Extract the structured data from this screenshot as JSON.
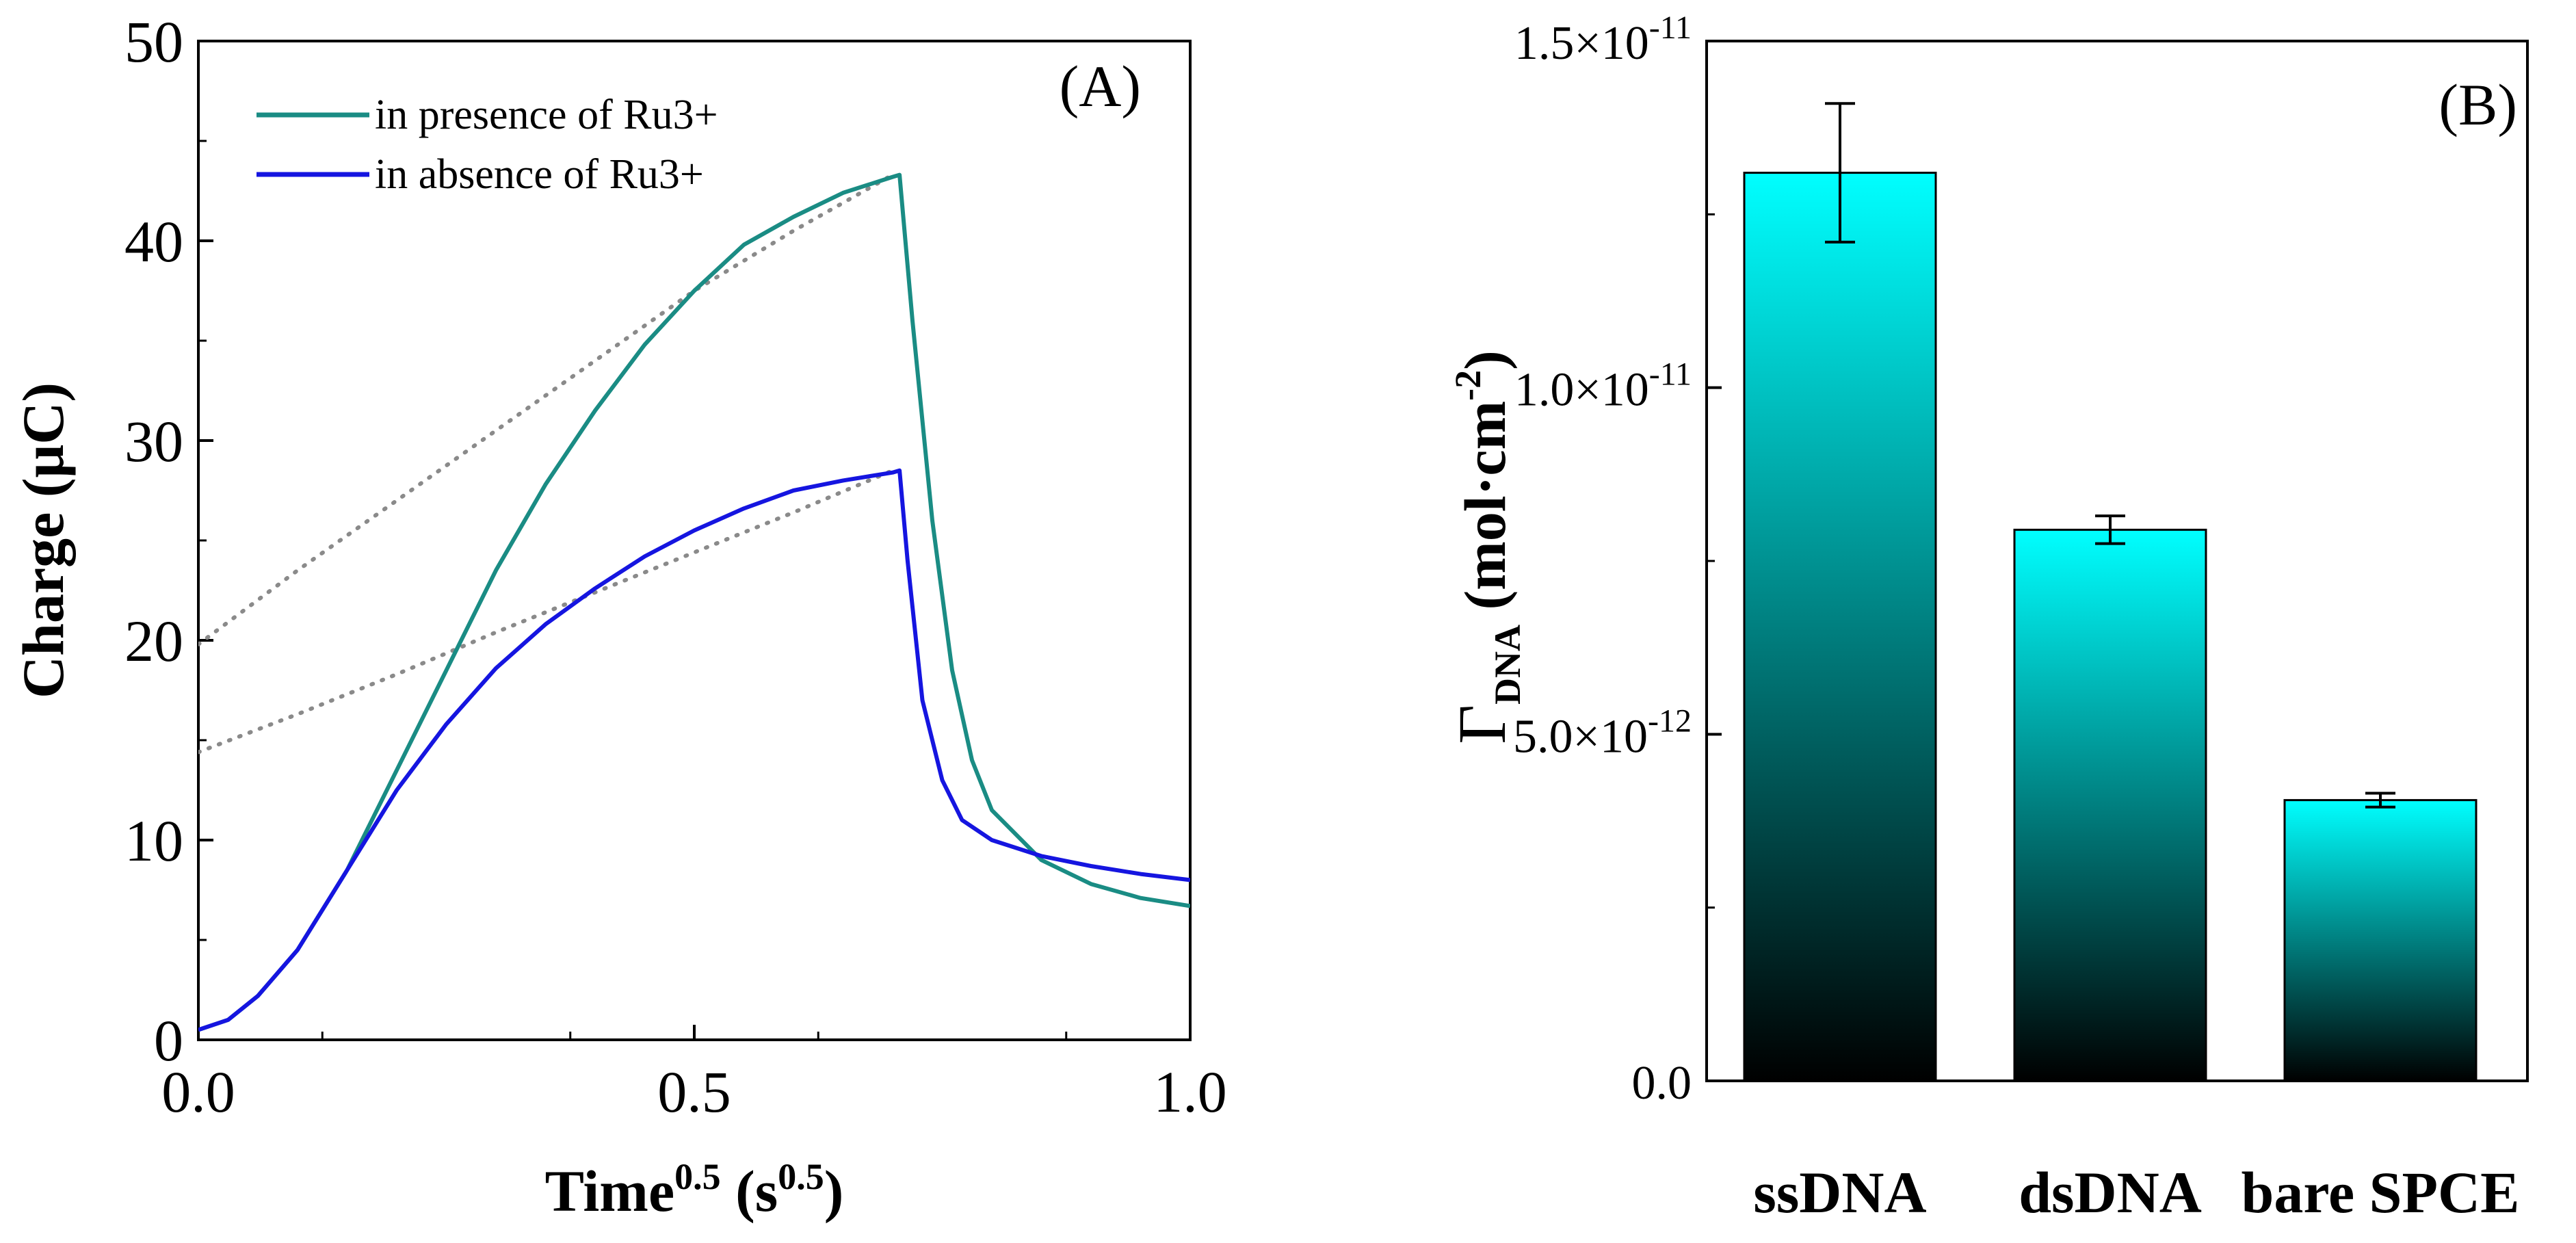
{
  "colors": {
    "teal": "#1a8c84",
    "blue": "#1515e0",
    "fit": "#8a8a8a",
    "bar_top": "#00ffff",
    "bar_bottom": "#000000"
  },
  "chart_data": [
    {
      "type": "line",
      "panel_label": "(A)",
      "xlabel_main": "Time",
      "xlabel_sup": "0.5",
      "xlabel_unit_open": " (s",
      "xlabel_unit_sup": "0.5",
      "xlabel_unit_close": ")",
      "ylabel": "Charge (μC)",
      "xlim": [
        0.0,
        1.0
      ],
      "ylim": [
        0,
        50
      ],
      "x_ticks": [
        "0.0",
        "0.5",
        "1.0"
      ],
      "x_tick_values": [
        0.0,
        0.5,
        1.0
      ],
      "y_ticks": [
        "0",
        "10",
        "20",
        "30",
        "40",
        "50"
      ],
      "y_tick_values": [
        0,
        10,
        20,
        30,
        40,
        50
      ],
      "legend_position": "top-left",
      "series": [
        {
          "name": "in presence of Ru3+",
          "color": "#1a8c84",
          "x": [
            0.0,
            0.03,
            0.06,
            0.1,
            0.15,
            0.2,
            0.25,
            0.3,
            0.35,
            0.4,
            0.45,
            0.5,
            0.55,
            0.6,
            0.65,
            0.7,
            0.707,
            0.72,
            0.74,
            0.76,
            0.78,
            0.8,
            0.85,
            0.9,
            0.95,
            1.0
          ],
          "y": [
            0.5,
            1.0,
            2.2,
            4.5,
            8.5,
            13.5,
            18.5,
            23.5,
            27.8,
            31.5,
            34.8,
            37.5,
            39.8,
            41.2,
            42.4,
            43.2,
            43.3,
            36.0,
            26.0,
            18.5,
            14.0,
            11.5,
            9.0,
            7.8,
            7.1,
            6.7
          ]
        },
        {
          "name": "in absence of Ru3+",
          "color": "#1515e0",
          "x": [
            0.0,
            0.03,
            0.06,
            0.1,
            0.15,
            0.2,
            0.25,
            0.3,
            0.35,
            0.4,
            0.45,
            0.5,
            0.55,
            0.6,
            0.65,
            0.7,
            0.707,
            0.715,
            0.73,
            0.75,
            0.77,
            0.8,
            0.85,
            0.9,
            0.95,
            1.0
          ],
          "y": [
            0.5,
            1.0,
            2.2,
            4.5,
            8.5,
            12.5,
            15.8,
            18.6,
            20.8,
            22.6,
            24.2,
            25.5,
            26.6,
            27.5,
            28.0,
            28.4,
            28.5,
            24.0,
            17.0,
            13.0,
            11.0,
            10.0,
            9.2,
            8.7,
            8.3,
            8.0
          ]
        },
        {
          "name": "",
          "color": "#8a8a8a",
          "dotted": true,
          "x": [
            0.0,
            0.1,
            0.2,
            0.3,
            0.4,
            0.5,
            0.6,
            0.7
          ],
          "y": [
            19.8,
            23.5,
            27.0,
            30.5,
            34.0,
            37.5,
            40.5,
            43.3
          ]
        },
        {
          "name": "",
          "color": "#8a8a8a",
          "dotted": true,
          "x": [
            0.0,
            0.1,
            0.2,
            0.3,
            0.4,
            0.5,
            0.6,
            0.7
          ],
          "y": [
            14.4,
            16.3,
            18.3,
            20.4,
            22.4,
            24.4,
            26.4,
            28.5
          ]
        }
      ]
    },
    {
      "type": "bar",
      "panel_label": "(B)",
      "ylabel_symbol": "Γ",
      "ylabel_sub": "DNA",
      "ylabel_unit_open": " (mol·cm",
      "ylabel_unit_sup": "-2",
      "ylabel_unit_close": ")",
      "categories": [
        "ssDNA",
        "dsDNA",
        "bare SPCE"
      ],
      "values": [
        1.31e-11,
        7.95e-12,
        4.05e-12
      ],
      "errors": [
        1e-12,
        2e-13,
        1e-13
      ],
      "ylim": [
        0,
        1.5e-11
      ],
      "y_tick_values": [
        0,
        5e-12,
        1e-11,
        1.5e-11
      ],
      "y_tick_labels": [
        {
          "mantissa": "0.0",
          "exp": ""
        },
        {
          "mantissa": "5.0×10",
          "exp": "-12"
        },
        {
          "mantissa": "1.0×10",
          "exp": "-11"
        },
        {
          "mantissa": "1.5×10",
          "exp": "-11"
        }
      ]
    }
  ]
}
